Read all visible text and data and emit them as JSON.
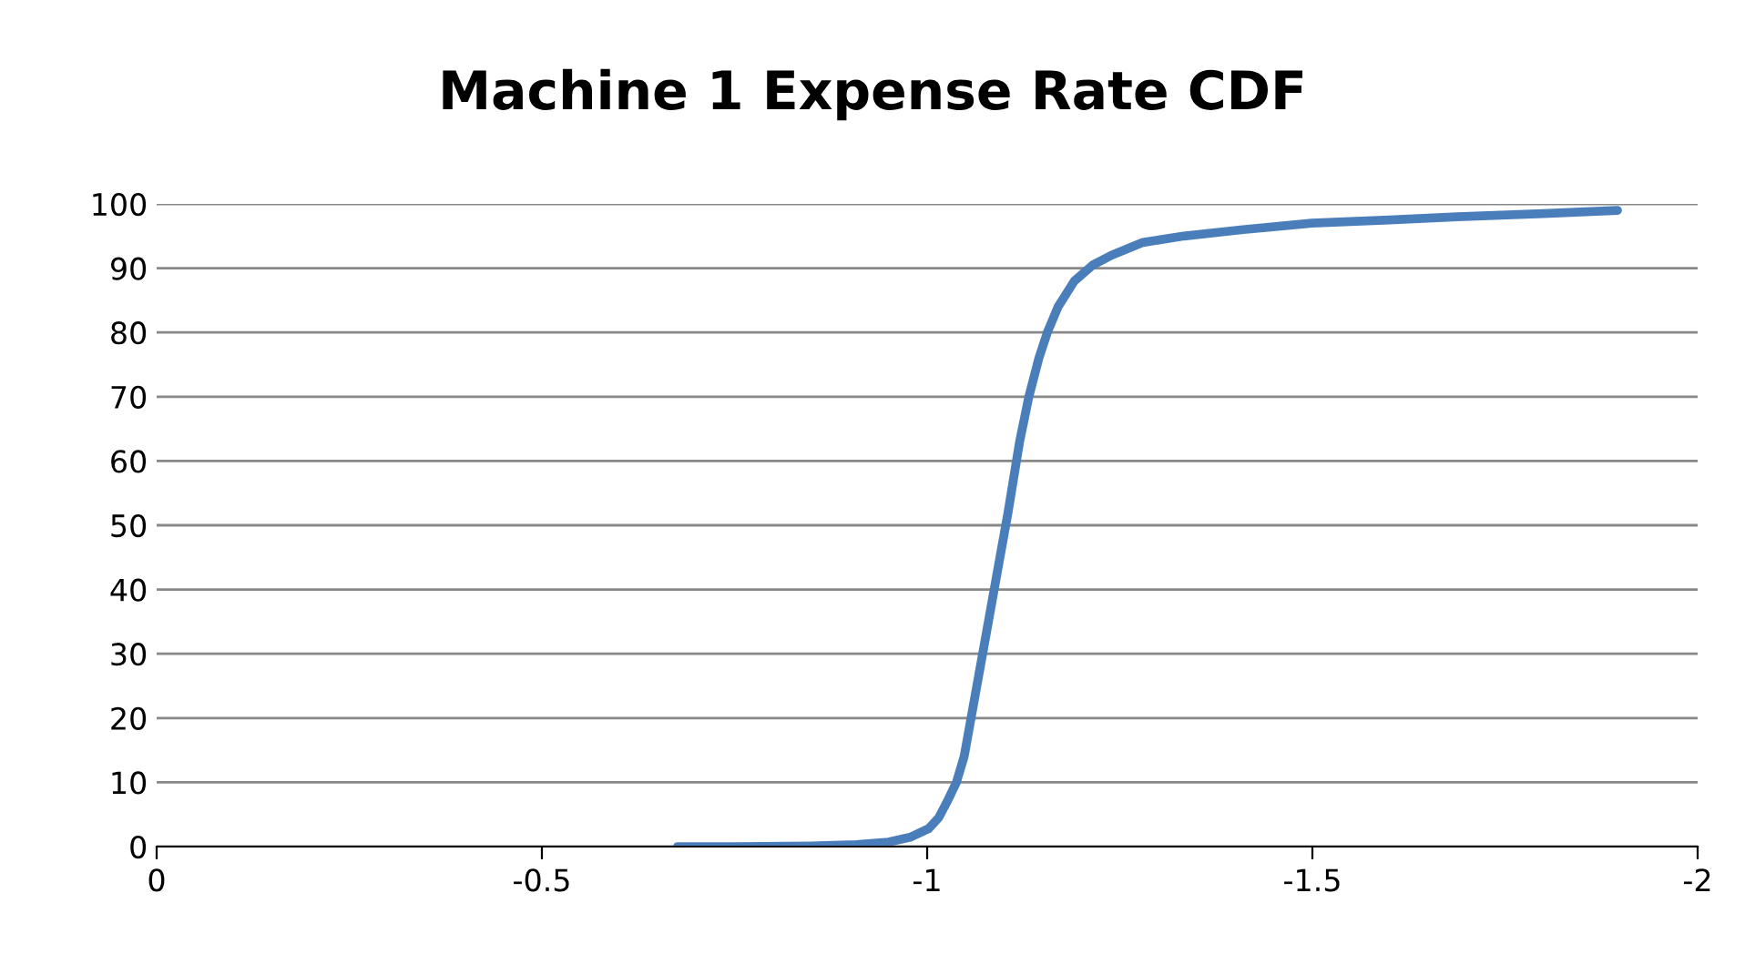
{
  "chart_data": {
    "type": "line",
    "title": "Machine 1 Expense Rate CDF",
    "series": [
      {
        "color": "#4a7ebb",
        "x": [
          -0.676,
          -0.75,
          -0.85,
          -0.908,
          -0.95,
          -0.979,
          -1.002,
          -1.015,
          -1.026,
          -1.038,
          -1.048,
          -1.06,
          -1.075,
          -1.09,
          -1.105,
          -1.12,
          -1.132,
          -1.145,
          -1.156,
          -1.17,
          -1.191,
          -1.215,
          -1.239,
          -1.28,
          -1.333,
          -1.41,
          -1.499,
          -1.6,
          -1.688,
          -1.8,
          -1.896
        ],
        "values": [
          0,
          0,
          0.1,
          0.3,
          0.7,
          1.5,
          2.8,
          4.5,
          7,
          10,
          14,
          22,
          32,
          42,
          52,
          63,
          70,
          76,
          80,
          84,
          88,
          90.5,
          92,
          94,
          95,
          96,
          97,
          97.5,
          98,
          98.5,
          99
        ]
      }
    ],
    "xlim": [
      0,
      -2
    ],
    "xticks": [
      0,
      -0.5,
      -1,
      -1.5,
      -2
    ],
    "ylim": [
      0,
      100
    ],
    "yticks": [
      0,
      10,
      20,
      30,
      40,
      50,
      60,
      70,
      80,
      90,
      100
    ],
    "grid": "y",
    "legend": false,
    "marker": "none",
    "line_style": "solid"
  }
}
